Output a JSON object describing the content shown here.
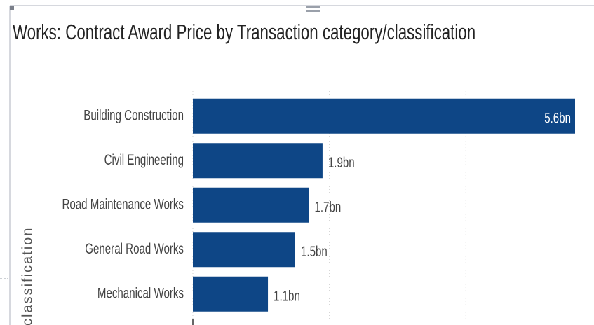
{
  "chart_data": {
    "type": "bar",
    "orientation": "horizontal",
    "title": "Works: Contract Award Price by Transaction category/classification",
    "y_label": "classification",
    "categories": [
      "Building Construction",
      "Civil Engineering",
      "Road Maintenance Works",
      "General Road Works",
      "Mechanical Works"
    ],
    "values": [
      5.6,
      1.9,
      1.7,
      1.5,
      1.1
    ],
    "value_labels": [
      "5.6bn",
      "1.9bn",
      "1.7bn",
      "1.5bn",
      "1.1bn"
    ],
    "color": "#0e4686",
    "xlim": [
      0,
      5.6
    ],
    "xticks": [
      0,
      2,
      4
    ],
    "grid": true
  }
}
